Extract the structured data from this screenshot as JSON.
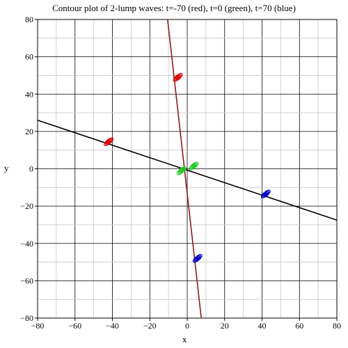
{
  "chart_data": {
    "type": "scatter",
    "title": "Contour plot of 2-lump waves: t=-70 (red), t=0 (green), t=70 (blue)",
    "xlabel": "x",
    "ylabel": "y",
    "xlim": [
      -80,
      80
    ],
    "ylim": [
      -80,
      80
    ],
    "xticks": [
      -80,
      -60,
      -40,
      -20,
      0,
      20,
      40,
      60,
      80
    ],
    "yticks": [
      -80,
      -60,
      -40,
      -20,
      0,
      20,
      40,
      60,
      80
    ],
    "grid": true,
    "lines": [
      {
        "color": "#000000",
        "x": [
          -80,
          80
        ],
        "y": [
          26,
          -27.5
        ]
      },
      {
        "color": "#8b1a1a",
        "x": [
          -10.5,
          7.5
        ],
        "y": [
          80,
          -80
        ]
      }
    ],
    "series": [
      {
        "color": "#dd0000",
        "x": [
          -42,
          -5
        ],
        "y": [
          14.5,
          49
        ]
      },
      {
        "color": "#22cc22",
        "x": [
          -3,
          3.5
        ],
        "y": [
          -1,
          1.5
        ]
      },
      {
        "color": "#0000cc",
        "x": [
          42,
          5.5
        ],
        "y": [
          -13.5,
          -48
        ]
      }
    ]
  }
}
